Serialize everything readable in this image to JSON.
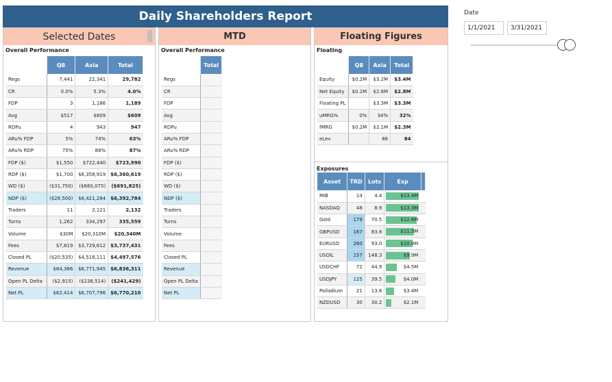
{
  "title": "Daily Shareholders Report",
  "date_filter": {
    "label": "Date",
    "start": "1/1/2021",
    "end": "3/31/2021"
  },
  "selected": {
    "header": "Selected Dates",
    "section": "Overall Performance",
    "columns": [
      "Q8",
      "Axia",
      "Total"
    ],
    "rows": [
      {
        "label": "Regs",
        "q8": "7,441",
        "axia": "22,341",
        "total": "29,782"
      },
      {
        "label": "CR",
        "q8": "0.0%",
        "axia": "5.3%",
        "total": "4.0%"
      },
      {
        "label": "FDP",
        "q8": "3",
        "axia": "1,186",
        "total": "1,189"
      },
      {
        "label": "Avg",
        "q8": "$517",
        "axia": "$609",
        "total": "$609"
      },
      {
        "label": "RDPu",
        "q8": "4",
        "axia": "943",
        "total": "947"
      },
      {
        "label": "ARu% FDP",
        "q8": "5%",
        "axia": "74%",
        "total": "63%"
      },
      {
        "label": "ARu% RDP",
        "q8": "75%",
        "axia": "88%",
        "total": "87%"
      },
      {
        "label": "FDP ($)",
        "q8": "$1,550",
        "axia": "$722,440",
        "total": "$723,990"
      },
      {
        "label": "RDP ($)",
        "q8": "$1,700",
        "axia": "$6,358,919",
        "total": "$6,360,619"
      },
      {
        "label": "WD ($)",
        "q8": "($31,750)",
        "axia": "($660,075)",
        "total": "($691,825)"
      },
      {
        "label": "NDP ($)",
        "q8": "($28,500)",
        "axia": "$6,421,284",
        "total": "$6,392,784"
      },
      {
        "label": "Traders",
        "q8": "11",
        "axia": "2,121",
        "total": "2,132"
      },
      {
        "label": "Turns",
        "q8": "1,262",
        "axia": "334,297",
        "total": "335,559"
      },
      {
        "label": "Volume",
        "q8": "$30M",
        "axia": "$20,310M",
        "total": "$20,340M"
      },
      {
        "label": "Fees",
        "q8": "$7,819",
        "axia": "$3,729,612",
        "total": "$3,737,431"
      },
      {
        "label": "Closed PL",
        "q8": "($20,535)",
        "axia": "$4,518,111",
        "total": "$4,497,576"
      },
      {
        "label": "Revenue",
        "q8": "$64,366",
        "axia": "$6,771,945",
        "total": "$6,836,311"
      },
      {
        "label": "Open PL Delta",
        "q8": "($2,915)",
        "axia": "($238,514)",
        "total": "($241,429)"
      },
      {
        "label": "Net PL",
        "q8": "$62,414",
        "axia": "$6,707,796",
        "total": "$6,770,210"
      }
    ]
  },
  "mtd": {
    "header": "MTD",
    "section": "Overall Performance",
    "column": "Total",
    "rows": [
      "Regs",
      "CR",
      "FDP",
      "Avg",
      "RDPu",
      "ARu% FDP",
      "ARu% RDP",
      "FDP ($)",
      "RDP ($)",
      "WD ($)",
      "NDP ($)",
      "Traders",
      "Turns",
      "Volume",
      "Fees",
      "Closed PL",
      "Revenue",
      "Open PL Delta",
      "Net PL"
    ]
  },
  "floating": {
    "header": "Floating Figures",
    "section": "Floating",
    "columns": [
      "Q8",
      "Axia",
      "Total"
    ],
    "rows": [
      {
        "label": "Equity",
        "q8": "$0.2M",
        "axia": "$3.2M",
        "total": "$3.4M"
      },
      {
        "label": "Net Equity",
        "q8": "$0.2M",
        "axia": "$2.6M",
        "total": "$2.8M"
      },
      {
        "label": "Floating PL",
        "q8": "",
        "axia": "$3.3M",
        "total": "$3.3M"
      },
      {
        "label": "uMRG%",
        "q8": "0%",
        "axia": "34%",
        "total": "32%"
      },
      {
        "label": "fMRG",
        "q8": "$0.2M",
        "axia": "$2.1M",
        "total": "$2.3M"
      },
      {
        "label": "eLev",
        "q8": "",
        "axia": "88",
        "total": "84"
      }
    ]
  },
  "exposures": {
    "section": "Exposures",
    "columns": [
      "Asset",
      "TRD",
      "Lots",
      "Exp"
    ],
    "rows": [
      {
        "asset": "MIB",
        "trd": "14",
        "lots": "4.4",
        "exp": "$13.4M",
        "exp_value": 13.4
      },
      {
        "asset": "NASDAQ",
        "trd": "48",
        "lots": "8.9",
        "exp": "$13.3M",
        "exp_value": 13.3
      },
      {
        "asset": "Gold",
        "trd": "179",
        "lots": "70.5",
        "exp": "$12.6M",
        "exp_value": 12.6
      },
      {
        "asset": "GBPUSD",
        "trd": "167",
        "lots": "83.8",
        "exp": "$11.5M",
        "exp_value": 11.5
      },
      {
        "asset": "EURUSD",
        "trd": "260",
        "lots": "93.0",
        "exp": "$10.9M",
        "exp_value": 10.9
      },
      {
        "asset": "USOIL",
        "trd": "157",
        "lots": "148.3",
        "exp": "$9.9M",
        "exp_value": 9.9
      },
      {
        "asset": "USDCHF",
        "trd": "72",
        "lots": "44.9",
        "exp": "$4.5M",
        "exp_value": 4.5
      },
      {
        "asset": "USDJPY",
        "trd": "125",
        "lots": "39.5",
        "exp": "$4.0M",
        "exp_value": 4.0
      },
      {
        "asset": "Palladium",
        "trd": "21",
        "lots": "13.6",
        "exp": "$3.4M",
        "exp_value": 3.4
      },
      {
        "asset": "NZDUSD",
        "trd": "30",
        "lots": "30.2",
        "exp": "$2.1M",
        "exp_value": 2.1
      }
    ]
  }
}
